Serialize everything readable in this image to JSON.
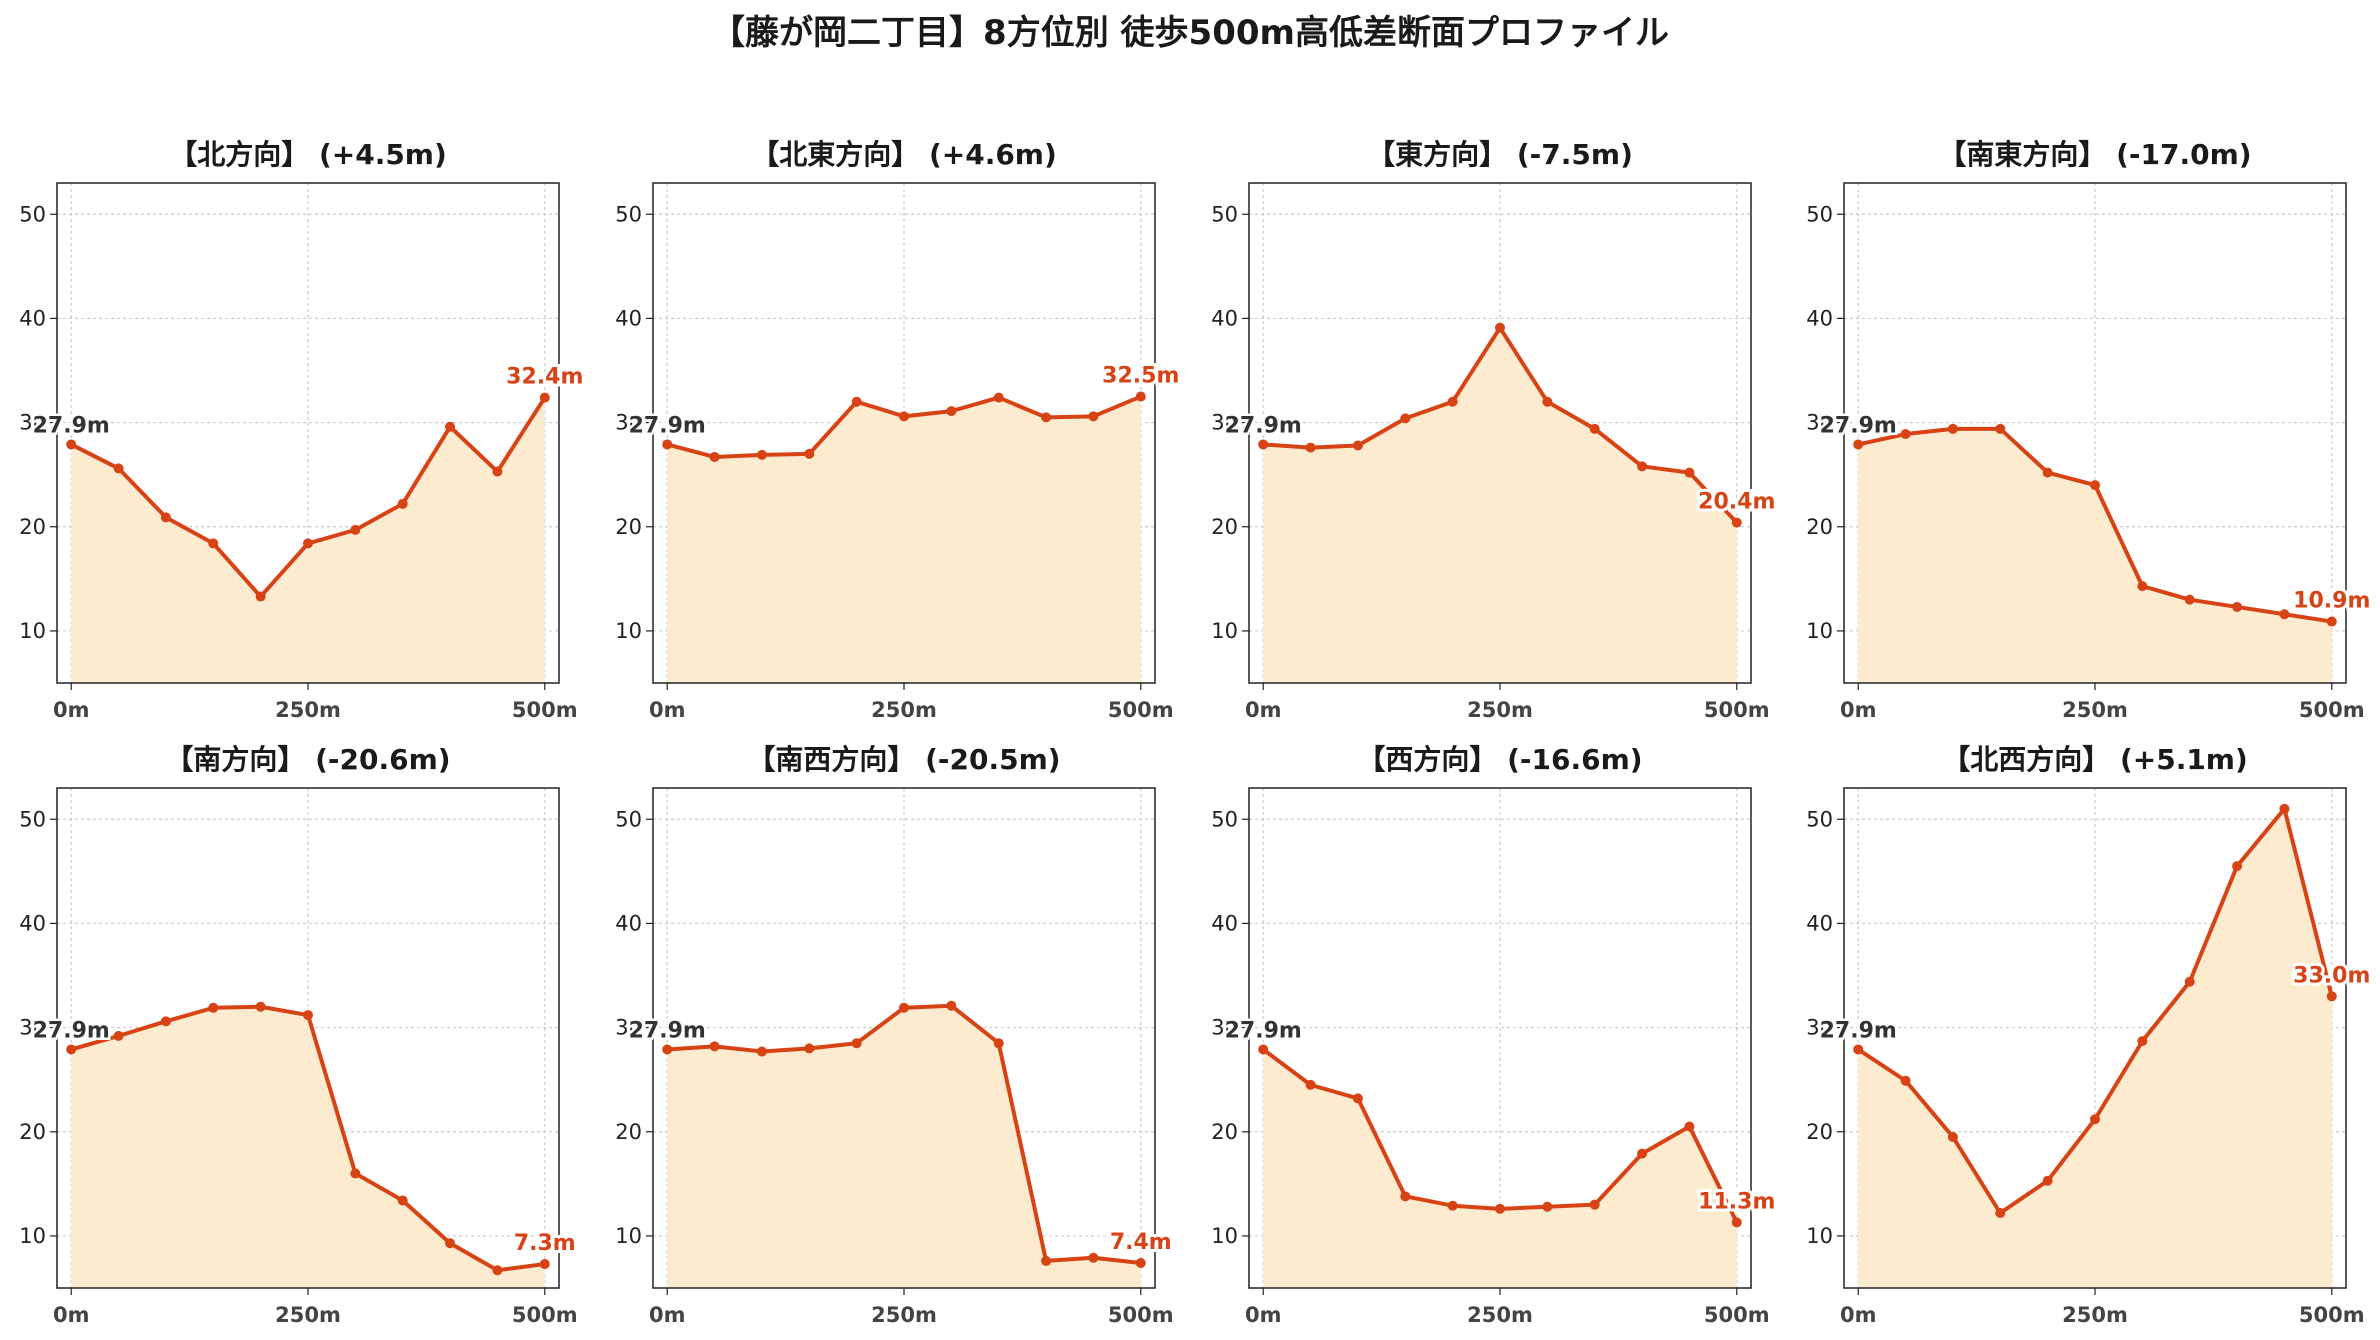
{
  "title": "【藤が岡二丁目】8方位別 徒歩500m高低差断面プロファイル",
  "colors": {
    "line": "#d84315",
    "fill": "#fdebd0",
    "start_label": "#333333",
    "end_label": "#d84315",
    "grid": "#cccccc"
  },
  "chart_data": [
    {
      "type": "area",
      "title": "【北方向】 (+4.5m)",
      "x": [
        0,
        50,
        100,
        150,
        200,
        250,
        300,
        350,
        400,
        450,
        500
      ],
      "values": [
        27.9,
        25.6,
        20.9,
        18.4,
        13.3,
        18.4,
        19.7,
        22.2,
        29.6,
        25.3,
        32.4
      ],
      "start_label": "27.9m",
      "end_label": "32.4m",
      "ylim": [
        5,
        53
      ],
      "yticks": [
        10,
        20,
        30,
        40,
        50
      ],
      "xticks": [
        "0m",
        "250m",
        "500m"
      ],
      "grid": true
    },
    {
      "type": "area",
      "title": "【北東方向】 (+4.6m)",
      "x": [
        0,
        50,
        100,
        150,
        200,
        250,
        300,
        350,
        400,
        450,
        500
      ],
      "values": [
        27.9,
        26.7,
        26.9,
        27.0,
        32.0,
        30.6,
        31.1,
        32.4,
        30.5,
        30.6,
        32.5
      ],
      "start_label": "27.9m",
      "end_label": "32.5m",
      "ylim": [
        5,
        53
      ],
      "yticks": [
        10,
        20,
        30,
        40,
        50
      ],
      "xticks": [
        "0m",
        "250m",
        "500m"
      ],
      "grid": true
    },
    {
      "type": "area",
      "title": "【東方向】 (-7.5m)",
      "x": [
        0,
        50,
        100,
        150,
        200,
        250,
        300,
        350,
        400,
        450,
        500
      ],
      "values": [
        27.9,
        27.6,
        27.8,
        30.4,
        32.0,
        39.1,
        32.0,
        29.4,
        25.8,
        25.2,
        20.4
      ],
      "start_label": "27.9m",
      "end_label": "20.4m",
      "ylim": [
        5,
        53
      ],
      "yticks": [
        10,
        20,
        30,
        40,
        50
      ],
      "xticks": [
        "0m",
        "250m",
        "500m"
      ],
      "grid": true
    },
    {
      "type": "area",
      "title": "【南東方向】 (-17.0m)",
      "x": [
        0,
        50,
        100,
        150,
        200,
        250,
        300,
        350,
        400,
        450,
        500
      ],
      "values": [
        27.9,
        28.9,
        29.4,
        29.4,
        25.2,
        24.0,
        14.3,
        13.0,
        12.3,
        11.6,
        10.9
      ],
      "start_label": "27.9m",
      "end_label": "10.9m",
      "ylim": [
        5,
        53
      ],
      "yticks": [
        10,
        20,
        30,
        40,
        50
      ],
      "xticks": [
        "0m",
        "250m",
        "500m"
      ],
      "grid": true
    },
    {
      "type": "area",
      "title": "【南方向】 (-20.6m)",
      "x": [
        0,
        50,
        100,
        150,
        200,
        250,
        300,
        350,
        400,
        450,
        500
      ],
      "values": [
        27.9,
        29.2,
        30.6,
        31.9,
        32.0,
        31.2,
        16.0,
        13.4,
        9.3,
        6.7,
        7.3
      ],
      "start_label": "27.9m",
      "end_label": "7.3m",
      "ylim": [
        5,
        53
      ],
      "yticks": [
        10,
        20,
        30,
        40,
        50
      ],
      "xticks": [
        "0m",
        "250m",
        "500m"
      ],
      "grid": true
    },
    {
      "type": "area",
      "title": "【南西方向】 (-20.5m)",
      "x": [
        0,
        50,
        100,
        150,
        200,
        250,
        300,
        350,
        400,
        450,
        500
      ],
      "values": [
        27.9,
        28.2,
        27.7,
        28.0,
        28.5,
        31.9,
        32.1,
        28.5,
        7.6,
        7.9,
        7.4
      ],
      "start_label": "27.9m",
      "end_label": "7.4m",
      "ylim": [
        5,
        53
      ],
      "yticks": [
        10,
        20,
        30,
        40,
        50
      ],
      "xticks": [
        "0m",
        "250m",
        "500m"
      ],
      "grid": true
    },
    {
      "type": "area",
      "title": "【西方向】 (-16.6m)",
      "x": [
        0,
        50,
        100,
        150,
        200,
        250,
        300,
        350,
        400,
        450,
        500
      ],
      "values": [
        27.9,
        24.5,
        23.2,
        13.8,
        12.9,
        12.6,
        12.8,
        13.0,
        17.9,
        20.5,
        11.3
      ],
      "start_label": "27.9m",
      "end_label": "11.3m",
      "ylim": [
        5,
        53
      ],
      "yticks": [
        10,
        20,
        30,
        40,
        50
      ],
      "xticks": [
        "0m",
        "250m",
        "500m"
      ],
      "grid": true
    },
    {
      "type": "area",
      "title": "【北西方向】 (+5.1m)",
      "x": [
        0,
        50,
        100,
        150,
        200,
        250,
        300,
        350,
        400,
        450,
        500
      ],
      "values": [
        27.9,
        24.9,
        19.5,
        12.2,
        15.3,
        21.2,
        28.7,
        34.4,
        45.5,
        51.0,
        33.0
      ],
      "start_label": "27.9m",
      "end_label": "33.0m",
      "ylim": [
        5,
        53
      ],
      "yticks": [
        10,
        20,
        30,
        40,
        50
      ],
      "xticks": [
        "0m",
        "250m",
        "500m"
      ],
      "grid": true
    }
  ]
}
